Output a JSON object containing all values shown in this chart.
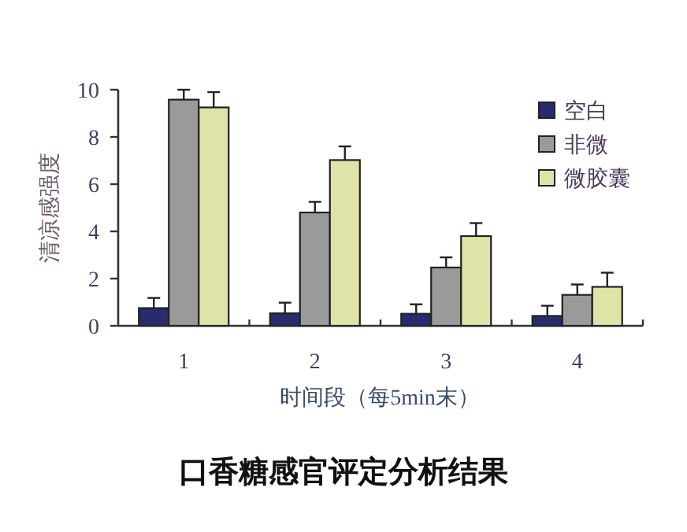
{
  "chart_data": {
    "type": "bar",
    "title": "口香糖感官评定分析结果",
    "xlabel": "时间段（每5min末）",
    "ylabel": "清凉感强度",
    "categories": [
      "1",
      "2",
      "3",
      "4"
    ],
    "series": [
      {
        "name": "空白",
        "color": "#2a2a6e",
        "values": [
          0.75,
          0.53,
          0.51,
          0.42
        ],
        "errors": [
          0.43,
          0.45,
          0.4,
          0.43
        ]
      },
      {
        "name": "非微",
        "color": "#9a9a9a",
        "values": [
          9.58,
          4.8,
          2.47,
          1.31
        ],
        "errors": [
          0.42,
          0.45,
          0.43,
          0.44
        ]
      },
      {
        "name": "微胶囊",
        "color": "#dfe3a8",
        "values": [
          9.25,
          7.02,
          3.8,
          1.65
        ],
        "errors": [
          0.65,
          0.58,
          0.55,
          0.6
        ]
      }
    ],
    "ylim": [
      0,
      10
    ],
    "yticks": [
      0,
      2,
      4,
      6,
      8,
      10
    ],
    "legend": "top right",
    "grid": false
  }
}
